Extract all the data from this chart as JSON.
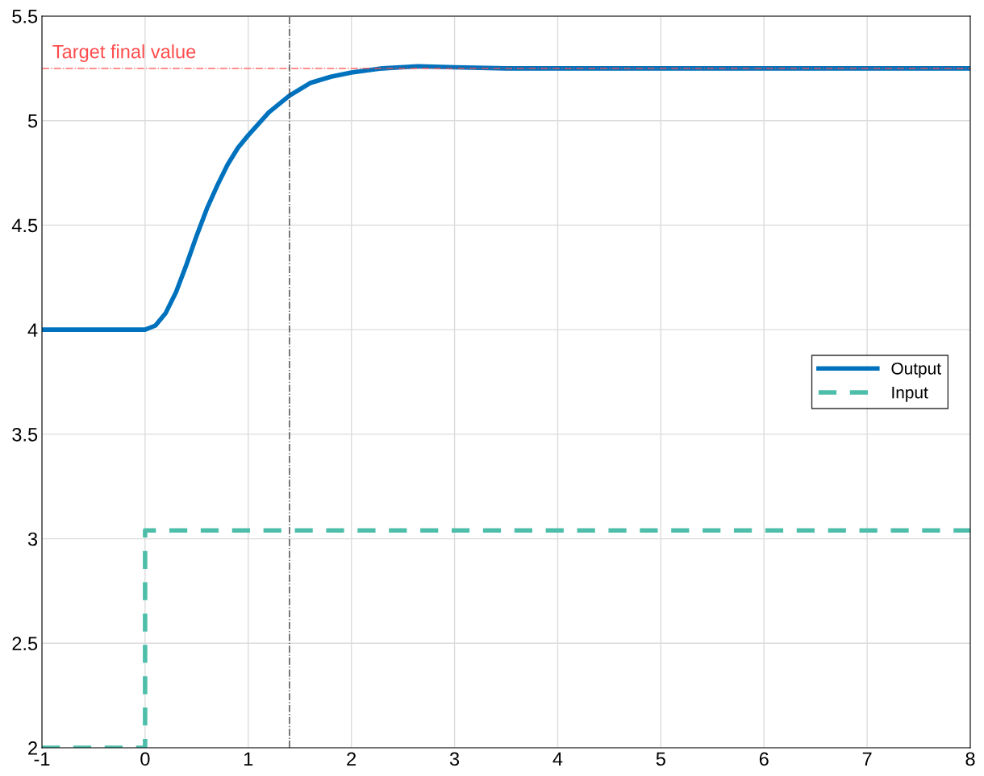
{
  "chart_data": {
    "type": "line",
    "xlim": [
      -1,
      8
    ],
    "ylim": [
      2,
      5.5
    ],
    "xticks": [
      -1,
      0,
      1,
      2,
      3,
      4,
      5,
      6,
      7,
      8
    ],
    "yticks": [
      2,
      2.5,
      3,
      3.5,
      4,
      4.5,
      5,
      5.5
    ],
    "grid": true,
    "legend": "right",
    "series": [
      {
        "name": "Output",
        "color": "#0072bd",
        "line_style": "solid",
        "x": [
          -1,
          0,
          0.1,
          0.2,
          0.3,
          0.4,
          0.5,
          0.6,
          0.7,
          0.8,
          0.9,
          1.0,
          1.2,
          1.4,
          1.6,
          1.8,
          2.0,
          2.3,
          2.65,
          3,
          3.5,
          4,
          5,
          6,
          7,
          8
        ],
        "values": [
          4,
          4,
          4.02,
          4.08,
          4.18,
          4.31,
          4.45,
          4.58,
          4.69,
          4.79,
          4.87,
          4.93,
          5.04,
          5.12,
          5.18,
          5.21,
          5.23,
          5.25,
          5.26,
          5.255,
          5.25,
          5.25,
          5.25,
          5.25,
          5.25,
          5.25
        ]
      },
      {
        "name": "Input",
        "color": "#4dbeaa",
        "line_style": "dashed",
        "x": [
          -1,
          0,
          0,
          8
        ],
        "values": [
          2,
          2,
          3.04,
          3.04
        ]
      }
    ],
    "ref_lines": [
      {
        "axis": "y",
        "value": 5.25,
        "label": "Target final value",
        "color": "#ff4d4d",
        "line_style": "dashdot"
      },
      {
        "axis": "x",
        "value": 1.4,
        "color": "#404040",
        "line_style": "dashdot"
      }
    ]
  }
}
